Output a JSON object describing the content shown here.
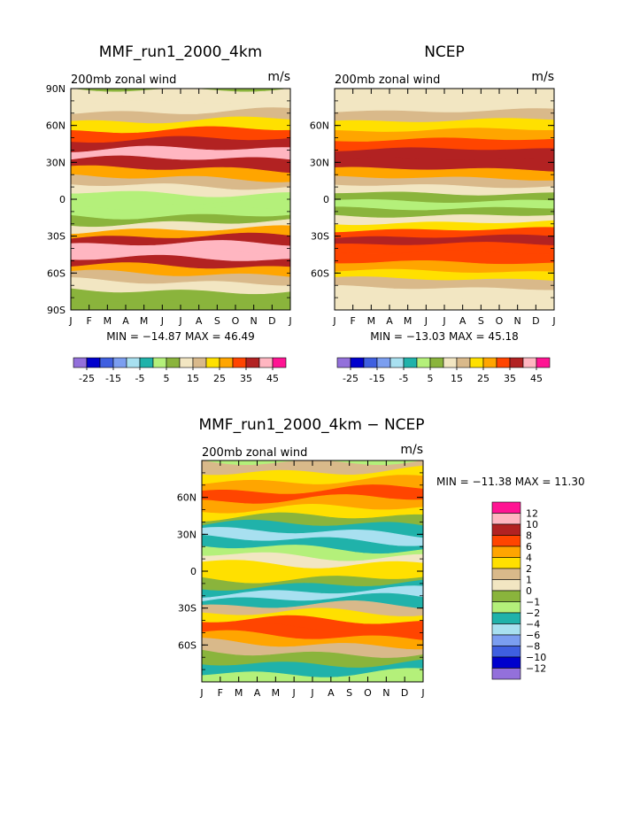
{
  "chart_data": [
    {
      "type": "heatmap",
      "title": "MMF_run1_2000_4km",
      "subtitle": "200mb zonal wind",
      "units": "m/s",
      "y_ticks": [
        "90N",
        "60N",
        "30N",
        "0",
        "30S",
        "60S",
        "90S"
      ],
      "x_ticks": [
        "J",
        "F",
        "M",
        "A",
        "M",
        "J",
        "J",
        "A",
        "S",
        "O",
        "N",
        "D",
        "J"
      ],
      "stats": "MIN = −14.87 MAX =  46.49",
      "levels_label": [
        "-25",
        "-15",
        "-5",
        "5",
        "15",
        "25",
        "35",
        "45"
      ],
      "palette": [
        "#9370db",
        "#0000cd",
        "#3f5fe0",
        "#7b9ef0",
        "#a8e0f0",
        "#20b2aa",
        "#b4f07a",
        "#8ab43c",
        "#f2e6c2",
        "#d9b98a",
        "#ffe000",
        "#ffa500",
        "#ff4500",
        "#b22222",
        "#ffb6c1",
        "#ff1493"
      ],
      "bands": [
        {
          "lat": 86,
          "value": 5
        },
        {
          "lat": 75,
          "value": 8
        },
        {
          "lat": 68,
          "value": 13
        },
        {
          "lat": 60,
          "value": 18
        },
        {
          "lat": 52,
          "value": 25
        },
        {
          "lat": 44,
          "value": 30
        },
        {
          "lat": 36,
          "value": 37
        },
        {
          "lat": 28,
          "value": 32
        },
        {
          "lat": 20,
          "value": 20
        },
        {
          "lat": 14,
          "value": 12
        },
        {
          "lat": 8,
          "value": 5
        },
        {
          "lat": 2,
          "value": -1
        },
        {
          "lat": -4,
          "value": -4
        },
        {
          "lat": -10,
          "value": -2
        },
        {
          "lat": -16,
          "value": 2
        },
        {
          "lat": -22,
          "value": 8
        },
        {
          "lat": -28,
          "value": 22
        },
        {
          "lat": -34,
          "value": 33
        },
        {
          "lat": -40,
          "value": 38
        },
        {
          "lat": -46,
          "value": 36
        },
        {
          "lat": -52,
          "value": 30
        },
        {
          "lat": -58,
          "value": 22
        },
        {
          "lat": -64,
          "value": 14
        },
        {
          "lat": -70,
          "value": 8
        },
        {
          "lat": -78,
          "value": 4
        },
        {
          "lat": -86,
          "value": 2
        }
      ]
    },
    {
      "type": "heatmap",
      "title": "NCEP",
      "subtitle": "200mb zonal wind",
      "units": "m/s",
      "y_ticks": [
        "60N",
        "30N",
        "0",
        "30S",
        "60S"
      ],
      "x_ticks": [
        "J",
        "F",
        "M",
        "A",
        "M",
        "J",
        "J",
        "A",
        "S",
        "O",
        "N",
        "D",
        "J"
      ],
      "stats": "MIN = −13.03 MAX =  45.18",
      "levels_label": [
        "-25",
        "-15",
        "-5",
        "5",
        "15",
        "25",
        "35",
        "45"
      ],
      "palette": [
        "#9370db",
        "#0000cd",
        "#3f5fe0",
        "#7b9ef0",
        "#a8e0f0",
        "#20b2aa",
        "#b4f07a",
        "#8ab43c",
        "#f2e6c2",
        "#d9b98a",
        "#ffe000",
        "#ffa500",
        "#ff4500",
        "#b22222",
        "#ffb6c1",
        "#ff1493"
      ],
      "bands": [
        {
          "lat": 86,
          "value": 5
        },
        {
          "lat": 76,
          "value": 8
        },
        {
          "lat": 68,
          "value": 12
        },
        {
          "lat": 60,
          "value": 16
        },
        {
          "lat": 52,
          "value": 22
        },
        {
          "lat": 44,
          "value": 27
        },
        {
          "lat": 36,
          "value": 33
        },
        {
          "lat": 28,
          "value": 30
        },
        {
          "lat": 20,
          "value": 20
        },
        {
          "lat": 14,
          "value": 12
        },
        {
          "lat": 8,
          "value": 6
        },
        {
          "lat": 2,
          "value": 0
        },
        {
          "lat": -4,
          "value": -2
        },
        {
          "lat": -10,
          "value": 2
        },
        {
          "lat": -16,
          "value": 8
        },
        {
          "lat": -22,
          "value": 16
        },
        {
          "lat": -28,
          "value": 26
        },
        {
          "lat": -34,
          "value": 30
        },
        {
          "lat": -40,
          "value": 28
        },
        {
          "lat": -48,
          "value": 27
        },
        {
          "lat": -56,
          "value": 22
        },
        {
          "lat": -62,
          "value": 17
        },
        {
          "lat": -68,
          "value": 12
        },
        {
          "lat": -76,
          "value": 7
        },
        {
          "lat": -86,
          "value": 5
        }
      ]
    },
    {
      "type": "heatmap",
      "title": "MMF_run1_2000_4km − NCEP",
      "subtitle": "200mb zonal wind",
      "units": "m/s",
      "y_ticks": [
        "60N",
        "30N",
        "0",
        "30S",
        "60S"
      ],
      "x_ticks": [
        "J",
        "F",
        "M",
        "A",
        "M",
        "J",
        "J",
        "A",
        "S",
        "O",
        "N",
        "D",
        "J"
      ],
      "stats": "MIN = −11.38 MAX =  11.30",
      "levels_label": [
        "12",
        "10",
        "8",
        "6",
        "4",
        "2",
        "1",
        "0",
        "−1",
        "−2",
        "−4",
        "−6",
        "−8",
        "−10",
        "−12"
      ],
      "palette": [
        "#ff1493",
        "#ffb6c1",
        "#b22222",
        "#ff4500",
        "#ffa500",
        "#ffe000",
        "#d9b98a",
        "#f2e6c2",
        "#8ab43c",
        "#b4f07a",
        "#20b2aa",
        "#a8e0f0",
        "#7b9ef0",
        "#3f5fe0",
        "#0000cd",
        "#9370db"
      ],
      "bands": [
        {
          "lat": 86,
          "value": 1
        },
        {
          "lat": 78,
          "value": 3
        },
        {
          "lat": 70,
          "value": 5
        },
        {
          "lat": 62,
          "value": 7
        },
        {
          "lat": 54,
          "value": 5
        },
        {
          "lat": 46,
          "value": 2
        },
        {
          "lat": 40,
          "value": -1
        },
        {
          "lat": 34,
          "value": -3
        },
        {
          "lat": 28,
          "value": -5
        },
        {
          "lat": 22,
          "value": -4
        },
        {
          "lat": 16,
          "value": -2
        },
        {
          "lat": 10,
          "value": 0
        },
        {
          "lat": 4,
          "value": 3
        },
        {
          "lat": -2,
          "value": 2
        },
        {
          "lat": -8,
          "value": -1
        },
        {
          "lat": -14,
          "value": -3
        },
        {
          "lat": -20,
          "value": -5
        },
        {
          "lat": -26,
          "value": -3
        },
        {
          "lat": -32,
          "value": 1
        },
        {
          "lat": -38,
          "value": 3
        },
        {
          "lat": -44,
          "value": 6
        },
        {
          "lat": -50,
          "value": 7
        },
        {
          "lat": -56,
          "value": 4
        },
        {
          "lat": -62,
          "value": 1
        },
        {
          "lat": -70,
          "value": -1
        },
        {
          "lat": -78,
          "value": -3
        },
        {
          "lat": -86,
          "value": -2
        }
      ]
    }
  ]
}
